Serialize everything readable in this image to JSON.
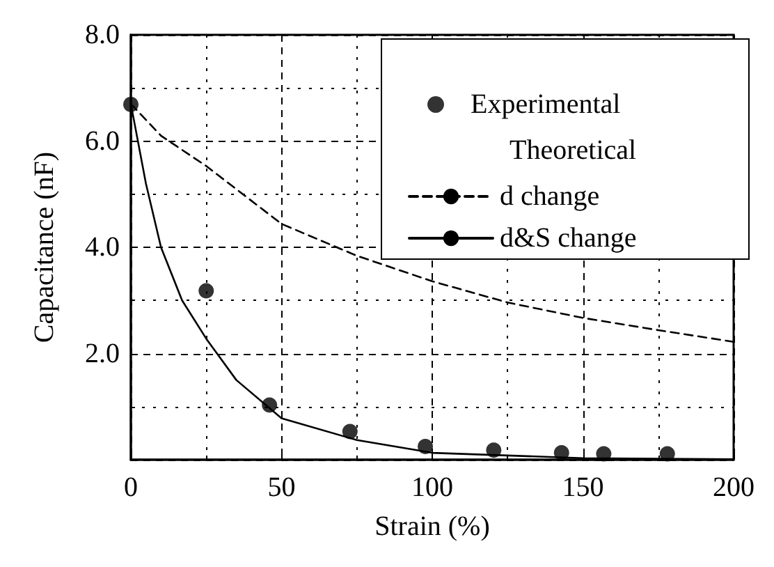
{
  "chart_data": {
    "type": "line",
    "xlabel": "Strain (%)",
    "ylabel": "Capacitance (nF)",
    "legend_title": "Theoretical",
    "xlim": [
      0,
      200
    ],
    "xticks": [
      0,
      50,
      100,
      150,
      200
    ],
    "ylim": [
      0,
      8
    ],
    "yticks": [
      {
        "value": 0,
        "label": null
      },
      {
        "value": 2,
        "label": "2.0"
      },
      {
        "value": 4,
        "label": "4.0"
      },
      {
        "value": 6,
        "label": "6.0"
      },
      {
        "value": 8,
        "label": "8.0"
      }
    ],
    "grid": true,
    "legend": "top right",
    "series": [
      {
        "name": "Experimental",
        "type": "scatter",
        "marker": "circle",
        "color": "#000000",
        "x": [
          0,
          25,
          46,
          72.7,
          97.7,
          120.4,
          142.9,
          156.9,
          178
        ],
        "values": [
          6.69,
          3.18,
          1.03,
          0.53,
          0.25,
          0.18,
          0.13,
          0.11,
          0.11
        ]
      },
      {
        "name": "d change",
        "type": "line",
        "line_style": "dashed",
        "marker": "none",
        "color": "#000000",
        "x": [
          0,
          10,
          25,
          50,
          75,
          100,
          125,
          150,
          175,
          200
        ],
        "values": [
          6.7,
          6.1,
          5.53,
          4.44,
          3.84,
          3.36,
          2.96,
          2.67,
          2.44,
          2.22
        ]
      },
      {
        "name": "d&S change",
        "type": "line",
        "line_style": "solid",
        "marker": "none",
        "color": "#000000",
        "x": [
          0,
          5,
          10,
          17,
          25,
          35,
          50,
          75,
          100,
          150,
          200
        ],
        "values": [
          6.7,
          5.2,
          4.0,
          3.0,
          2.28,
          1.5,
          0.78,
          0.37,
          0.13,
          0.03,
          0.01
        ]
      }
    ]
  }
}
